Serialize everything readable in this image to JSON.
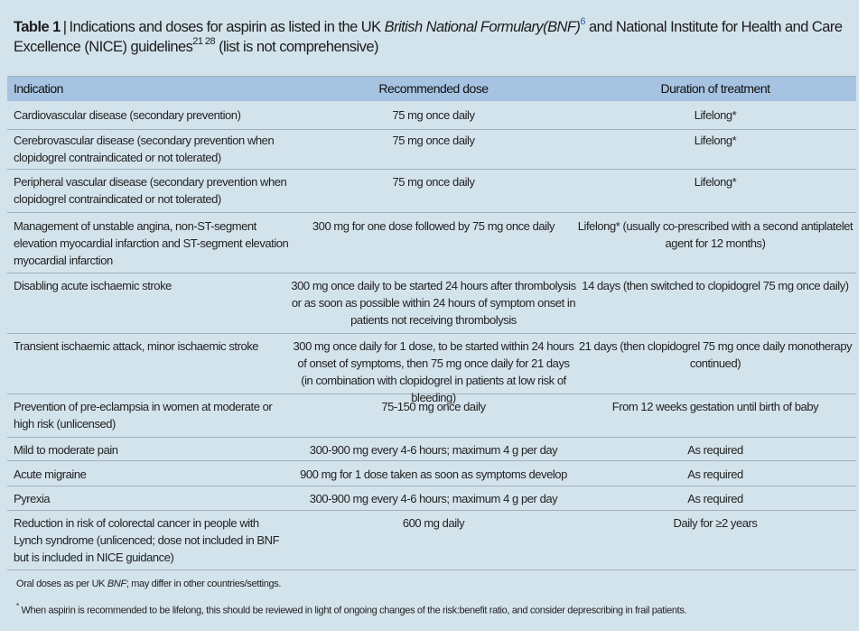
{
  "title": {
    "table_no": "Table 1",
    "separator": "|",
    "text_a": "Indications and doses for aspirin as listed in the UK ",
    "italic": "British National Formulary(BNF)",
    "ref_a": "6",
    "text_b": " and National Institute for Health and Care Excellence (NICE) guidelines",
    "ref_b": "21 28",
    "text_c": " (list is not comprehensive)"
  },
  "headers": [
    "Indication",
    "Recommended dose",
    "Duration of treatment"
  ],
  "rows": [
    [
      "Cardiovascular disease (secondary prevention)",
      "75 mg once daily",
      "Lifelong*"
    ],
    [
      "Cerebrovascular disease (secondary prevention when clopidogrel contraindicated or not tolerated)",
      "75 mg once daily",
      "Lifelong*"
    ],
    [
      "Peripheral vascular disease (secondary prevention when clopidogrel contraindicated or not tolerated)",
      "75 mg once daily",
      "Lifelong*"
    ],
    [
      "Management of unstable angina, non-ST-segment elevation myocardial infarction and ST-segment elevation myocardial infarction",
      "300 mg for one dose followed by 75 mg once daily",
      "Lifelong* (usually co-prescribed with a second antiplatelet agent for 12 months)"
    ],
    [
      "Disabling acute ischaemic stroke",
      "300 mg once daily to be started 24 hours after thrombolysis or as soon as possible within 24 hours of symptom onset in patients not receiving thrombolysis",
      "14 days (then switched to clopidogrel 75 mg once daily)"
    ],
    [
      "Transient ischaemic attack, minor ischaemic stroke",
      "300 mg once daily for 1 dose, to be started within 24 hours of onset of symptoms, then 75 mg once daily for 21 days (in combination with clopidogrel in patients at low risk of bleeding)",
      "21 days (then clopidogrel 75 mg once daily monotherapy continued)"
    ],
    [
      "Prevention of pre-eclampsia in women at moderate or high risk (unlicensed)",
      "75-150 mg once daily",
      "From 12 weeks gestation until birth of baby"
    ],
    [
      "Mild to moderate pain",
      "300-900 mg every 4-6 hours; maximum 4 g per day",
      "As required"
    ],
    [
      "Acute migraine",
      "900 mg for 1 dose taken as soon as symptoms develop",
      "As required"
    ],
    [
      "Pyrexia",
      "300-900 mg every 4-6 hours; maximum 4 g per day",
      "As required"
    ],
    [
      "Reduction in risk of colorectal cancer in people with Lynch syndrome (unlicenced; dose not included in BNF but is included in NICE guidance)",
      "600 mg daily",
      "Daily for ≥2 years"
    ]
  ],
  "footnotes": {
    "oral_a": "Oral doses as per UK ",
    "oral_italic": "BNF",
    "oral_b": "; may differ in other countries/settings.",
    "star_mark": "*",
    "star_text": " When aspirin is recommended to be lifelong, this should be reviewed in light of ongoing changes of the risk:benefit ratio, and consider deprescribing in frail patients."
  }
}
